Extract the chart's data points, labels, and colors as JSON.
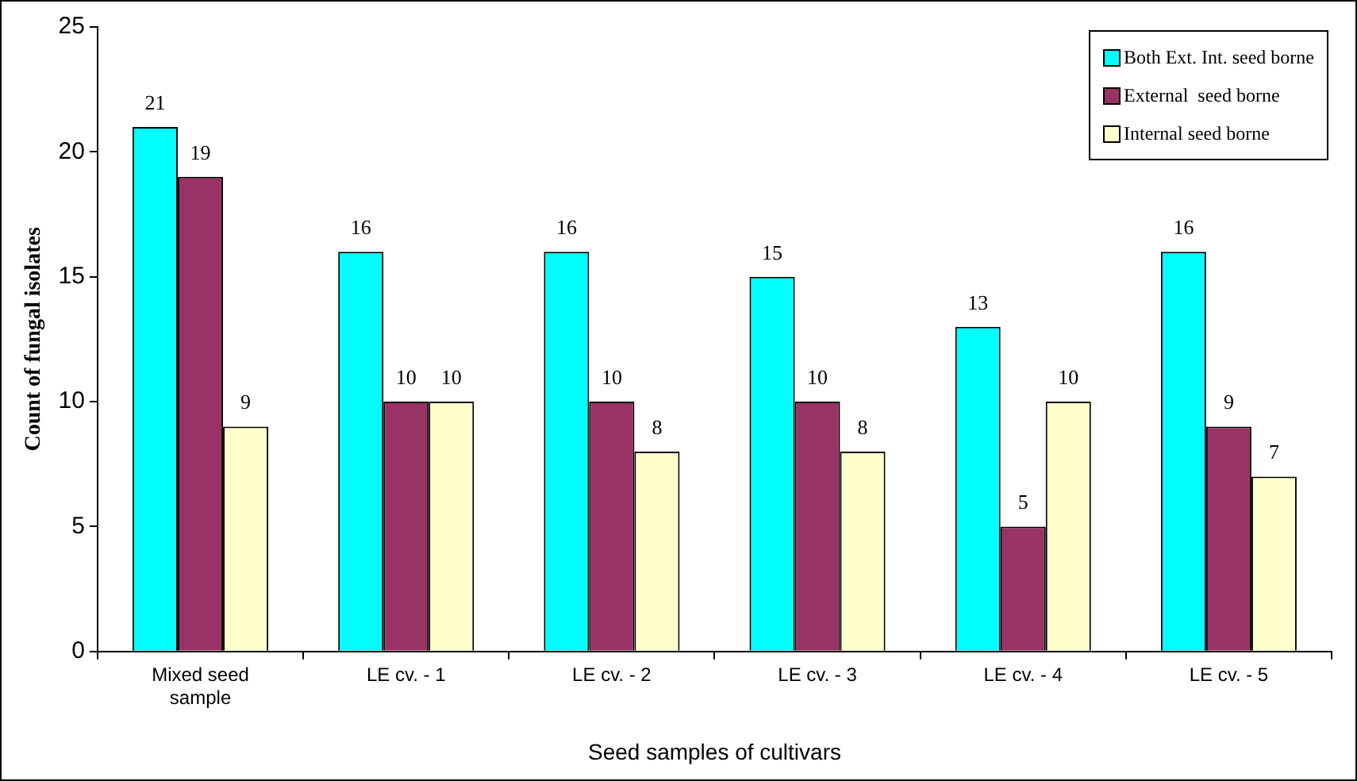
{
  "chart_data": {
    "type": "bar",
    "xlabel": "Seed samples of cultivars",
    "ylabel": "Count of fungal isolates",
    "categories": [
      "Mixed seed sample",
      "LE cv. - 1",
      "LE cv. - 2",
      "LE cv. - 3",
      "LE cv. - 4",
      "LE cv. - 5"
    ],
    "series": [
      {
        "name": "Both Ext. Int. seed borne",
        "color": "#00ffff",
        "values": [
          21,
          16,
          16,
          15,
          13,
          16
        ]
      },
      {
        "name": "External  seed borne",
        "color": "#993366",
        "values": [
          19,
          10,
          10,
          10,
          5,
          9
        ]
      },
      {
        "name": "Internal seed borne",
        "color": "#ffffcc",
        "values": [
          9,
          10,
          8,
          8,
          10,
          7
        ]
      }
    ],
    "ylim": [
      0,
      25
    ],
    "yticks": [
      0,
      5,
      10,
      15,
      20,
      25
    ],
    "grid": false,
    "legend": "top right",
    "data_labels": true
  }
}
